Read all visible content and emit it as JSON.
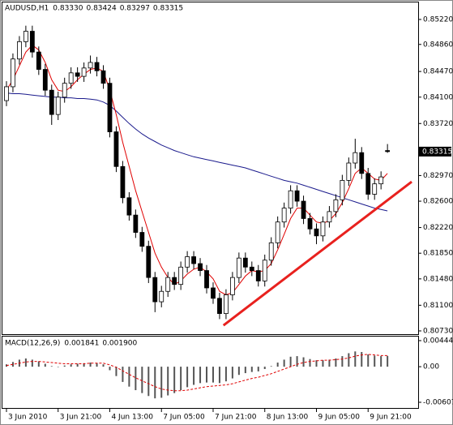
{
  "chart_data": [
    {
      "type": "candlestick",
      "title": "AUDUSD,H1",
      "title_values": [
        "0.83330",
        "0.83424",
        "0.83297",
        "0.83315"
      ],
      "xlim": [
        -0.75,
        63.75
      ],
      "xticks": [
        {
          "value": 0,
          "label": "3 Jun 2010"
        },
        {
          "value": 8,
          "label": "3 Jun 21:00"
        },
        {
          "value": 16,
          "label": "4 Jun 13:00"
        },
        {
          "value": 24,
          "label": "7 Jun 05:00"
        },
        {
          "value": 32,
          "label": "7 Jun 21:00"
        },
        {
          "value": 40,
          "label": "8 Jun 13:00"
        },
        {
          "value": 48,
          "label": "9 Jun 05:00"
        },
        {
          "value": 56,
          "label": "9 Jun 21:00"
        }
      ],
      "ylim": [
        0.80683,
        0.85477
      ],
      "yticks": [
        {
          "value": 0.8522,
          "label": "0.85220"
        },
        {
          "value": 0.8486,
          "label": "0.84860"
        },
        {
          "value": 0.8447,
          "label": "0.84470"
        },
        {
          "value": 0.841,
          "label": "0.84100"
        },
        {
          "value": 0.8372,
          "label": "0.83720"
        },
        {
          "value": 0.8297,
          "label": "0.82970"
        },
        {
          "value": 0.826,
          "label": "0.82600"
        },
        {
          "value": 0.8222,
          "label": "0.82220"
        },
        {
          "value": 0.8185,
          "label": "0.81850"
        },
        {
          "value": 0.8148,
          "label": "0.81480"
        },
        {
          "value": 0.811,
          "label": "0.81100"
        },
        {
          "value": 0.8073,
          "label": "0.80730"
        }
      ],
      "current_price": {
        "value": 0.83315,
        "label": "0.83315"
      },
      "up_color": "#ffffff",
      "down_color": "#000000",
      "open": [
        0.8405,
        0.8425,
        0.8465,
        0.849,
        0.8505,
        0.8475,
        0.845,
        0.842,
        0.8385,
        0.841,
        0.843,
        0.8445,
        0.844,
        0.8452,
        0.846,
        0.8448,
        0.843,
        0.836,
        0.831,
        0.8265,
        0.824,
        0.8215,
        0.8195,
        0.815,
        0.8115,
        0.813,
        0.815,
        0.814,
        0.8165,
        0.818,
        0.817,
        0.816,
        0.8135,
        0.812,
        0.8098,
        0.8125,
        0.815,
        0.8178,
        0.8165,
        0.816,
        0.8145,
        0.8175,
        0.82,
        0.823,
        0.825,
        0.8275,
        0.826,
        0.8235,
        0.822,
        0.821,
        0.823,
        0.8245,
        0.8262,
        0.829,
        0.8315,
        0.833,
        0.83,
        0.827,
        0.8285,
        0.8333
      ],
      "high": [
        0.8433,
        0.8473,
        0.8498,
        0.8513,
        0.8513,
        0.8483,
        0.8458,
        0.8428,
        0.8418,
        0.8438,
        0.8453,
        0.8453,
        0.846,
        0.847,
        0.8468,
        0.8456,
        0.8438,
        0.8368,
        0.8318,
        0.8273,
        0.8248,
        0.8223,
        0.8203,
        0.8158,
        0.8138,
        0.8158,
        0.8158,
        0.8173,
        0.8188,
        0.8188,
        0.8178,
        0.8168,
        0.8143,
        0.8128,
        0.8133,
        0.8158,
        0.8186,
        0.8186,
        0.8173,
        0.8168,
        0.8183,
        0.8208,
        0.8238,
        0.8258,
        0.8283,
        0.8283,
        0.8268,
        0.8243,
        0.8228,
        0.8238,
        0.8253,
        0.827,
        0.8298,
        0.8323,
        0.835,
        0.8338,
        0.8308,
        0.8293,
        0.8303,
        0.83424
      ],
      "low": [
        0.8397,
        0.8417,
        0.8457,
        0.8482,
        0.8467,
        0.8442,
        0.8412,
        0.837,
        0.8377,
        0.8402,
        0.8422,
        0.8432,
        0.8432,
        0.8444,
        0.844,
        0.8422,
        0.8352,
        0.8302,
        0.8257,
        0.8232,
        0.8207,
        0.8187,
        0.8142,
        0.81,
        0.8107,
        0.8122,
        0.8132,
        0.8132,
        0.8157,
        0.8162,
        0.8152,
        0.8127,
        0.8112,
        0.809,
        0.809,
        0.8117,
        0.8142,
        0.8157,
        0.8152,
        0.8137,
        0.8137,
        0.8167,
        0.8192,
        0.8222,
        0.8242,
        0.8252,
        0.8227,
        0.8212,
        0.8198,
        0.8202,
        0.8222,
        0.8237,
        0.8254,
        0.8282,
        0.8307,
        0.8292,
        0.8262,
        0.8262,
        0.8277,
        0.83297
      ],
      "close": [
        0.8425,
        0.8465,
        0.849,
        0.8505,
        0.8475,
        0.845,
        0.842,
        0.8385,
        0.841,
        0.843,
        0.8445,
        0.844,
        0.8452,
        0.846,
        0.8448,
        0.843,
        0.836,
        0.831,
        0.8265,
        0.824,
        0.8215,
        0.8195,
        0.815,
        0.8115,
        0.813,
        0.815,
        0.814,
        0.8165,
        0.818,
        0.817,
        0.816,
        0.8135,
        0.812,
        0.8098,
        0.8125,
        0.815,
        0.8178,
        0.8165,
        0.816,
        0.8145,
        0.8175,
        0.82,
        0.823,
        0.825,
        0.8275,
        0.826,
        0.8235,
        0.822,
        0.821,
        0.823,
        0.8245,
        0.8262,
        0.829,
        0.8315,
        0.833,
        0.83,
        0.827,
        0.8285,
        0.8295,
        0.83315
      ],
      "ma_fast": {
        "color": "#e00000",
        "values": [
          0.842,
          0.8435,
          0.8455,
          0.8475,
          0.8485,
          0.8478,
          0.846,
          0.8435,
          0.842,
          0.8418,
          0.8425,
          0.8435,
          0.8443,
          0.845,
          0.8452,
          0.8447,
          0.842,
          0.8385,
          0.8345,
          0.831,
          0.8275,
          0.8245,
          0.8215,
          0.8185,
          0.8165,
          0.815,
          0.814,
          0.8145,
          0.8155,
          0.8162,
          0.8165,
          0.8158,
          0.8148,
          0.813,
          0.8125,
          0.8128,
          0.814,
          0.8152,
          0.816,
          0.8158,
          0.816,
          0.817,
          0.819,
          0.8212,
          0.8235,
          0.825,
          0.825,
          0.824,
          0.823,
          0.8228,
          0.8232,
          0.8242,
          0.8258,
          0.8278,
          0.83,
          0.8308,
          0.83,
          0.8292,
          0.829,
          0.83
        ]
      },
      "ma_slow": {
        "color": "#1a1a8c",
        "values": [
          0.8416,
          0.8415,
          0.8415,
          0.8414,
          0.8413,
          0.8412,
          0.8411,
          0.841,
          0.841,
          0.8409,
          0.8409,
          0.8408,
          0.8408,
          0.8407,
          0.8406,
          0.8403,
          0.8398,
          0.839,
          0.8381,
          0.8372,
          0.8364,
          0.8357,
          0.8351,
          0.8346,
          0.8341,
          0.8337,
          0.8333,
          0.833,
          0.8327,
          0.8324,
          0.8322,
          0.832,
          0.8318,
          0.8316,
          0.8314,
          0.8312,
          0.831,
          0.8308,
          0.8305,
          0.8302,
          0.8299,
          0.8296,
          0.8293,
          0.829,
          0.8288,
          0.8286,
          0.8283,
          0.828,
          0.8277,
          0.8274,
          0.8271,
          0.8268,
          0.8265,
          0.8262,
          0.8259,
          0.8256,
          0.8253,
          0.825,
          0.8248,
          0.8246
        ]
      },
      "trendline": {
        "color": "#e8211e",
        "x": [
          33.6,
          62.75
        ],
        "y": [
          0.8081,
          0.8288
        ]
      }
    },
    {
      "type": "macd",
      "title": "MACD(12,26,9)",
      "title_values": [
        "0.001841",
        "0.001900"
      ],
      "xlim": [
        -0.75,
        63.75
      ],
      "ylim": [
        -0.00704,
        0.00527
      ],
      "yticks": [
        0.004444,
        {
          "value": 0,
          "label": "0.00"
        },
        -0.00607
      ],
      "histogram_color": "#555555",
      "signal_color": "#e00000",
      "histogram": [
        0.0004,
        0.0008,
        0.0012,
        0.0014,
        0.0012,
        0.0009,
        0.0005,
        0.0001,
        0.0,
        0.0002,
        0.0004,
        0.0005,
        0.0006,
        0.0007,
        0.0006,
        0.0004,
        -0.0006,
        -0.0016,
        -0.0026,
        -0.0034,
        -0.004,
        -0.0045,
        -0.005,
        -0.0054,
        -0.0053,
        -0.0049,
        -0.0045,
        -0.004,
        -0.0035,
        -0.0031,
        -0.0028,
        -0.0027,
        -0.0027,
        -0.0028,
        -0.0025,
        -0.002,
        -0.0014,
        -0.0011,
        -0.0009,
        -0.0008,
        -0.0004,
        0.0001,
        0.0007,
        0.0012,
        0.0017,
        0.0018,
        0.0016,
        0.0013,
        0.0011,
        0.0011,
        0.0012,
        0.0014,
        0.0018,
        0.0023,
        0.0026,
        0.0025,
        0.0021,
        0.0019,
        0.0018,
        0.001841
      ],
      "signal": [
        0.0002,
        0.0004,
        0.0006,
        0.0008,
        0.0009,
        0.0009,
        0.0008,
        0.0007,
        0.0006,
        0.0005,
        0.0005,
        0.0005,
        0.0005,
        0.0006,
        0.0006,
        0.0006,
        0.0003,
        -0.0001,
        -0.0007,
        -0.0013,
        -0.0019,
        -0.0024,
        -0.0029,
        -0.0034,
        -0.0038,
        -0.004,
        -0.0041,
        -0.0041,
        -0.004,
        -0.0038,
        -0.0036,
        -0.0034,
        -0.0033,
        -0.0032,
        -0.0031,
        -0.0029,
        -0.0026,
        -0.0023,
        -0.002,
        -0.0018,
        -0.0015,
        -0.0012,
        -0.0008,
        -0.0004,
        0.0,
        0.0004,
        0.0007,
        0.0009,
        0.001,
        0.0011,
        0.0011,
        0.0012,
        0.0013,
        0.0015,
        0.0018,
        0.002,
        0.0021,
        0.002,
        0.0019,
        0.0019
      ]
    }
  ]
}
